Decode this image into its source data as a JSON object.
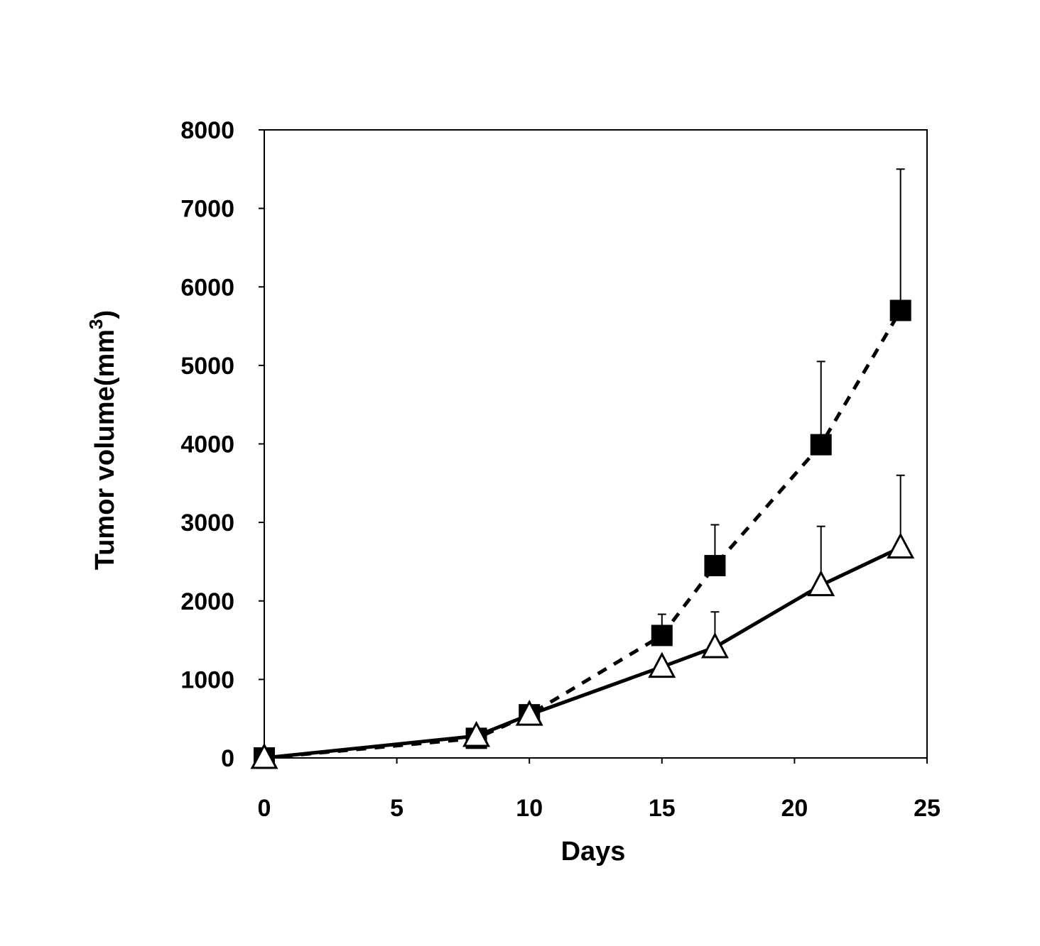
{
  "chart_data": {
    "type": "line",
    "title": "",
    "xlabel": "Days",
    "ylabel": "Tumor volume(mm",
    "ylabel_superscript": "3",
    "ylabel_close": ")",
    "xlim": [
      0,
      25
    ],
    "ylim": [
      0,
      8000
    ],
    "xticks": [
      "0",
      "5",
      "10",
      "15",
      "20",
      "25"
    ],
    "yticks": [
      "0",
      "1000",
      "2000",
      "3000",
      "4000",
      "5000",
      "6000",
      "7000",
      "8000"
    ],
    "grid": false,
    "series": [
      {
        "name": "filled-square-dashed",
        "marker": "square",
        "line": "dashed",
        "color": "#000000",
        "x": [
          0,
          8,
          10,
          15,
          17,
          21,
          24
        ],
        "y": [
          0,
          250,
          550,
          1560,
          2450,
          3990,
          5700
        ],
        "err_upper": [
          0,
          0,
          0,
          1830,
          2970,
          5050,
          7500
        ]
      },
      {
        "name": "open-triangle-solid",
        "marker": "triangle",
        "line": "solid",
        "color": "#000000",
        "x": [
          0,
          8,
          10,
          15,
          17,
          21,
          24
        ],
        "y": [
          0,
          280,
          550,
          1160,
          1410,
          2200,
          2680
        ],
        "err_upper": [
          0,
          0,
          0,
          0,
          1860,
          2950,
          3600
        ]
      }
    ]
  }
}
